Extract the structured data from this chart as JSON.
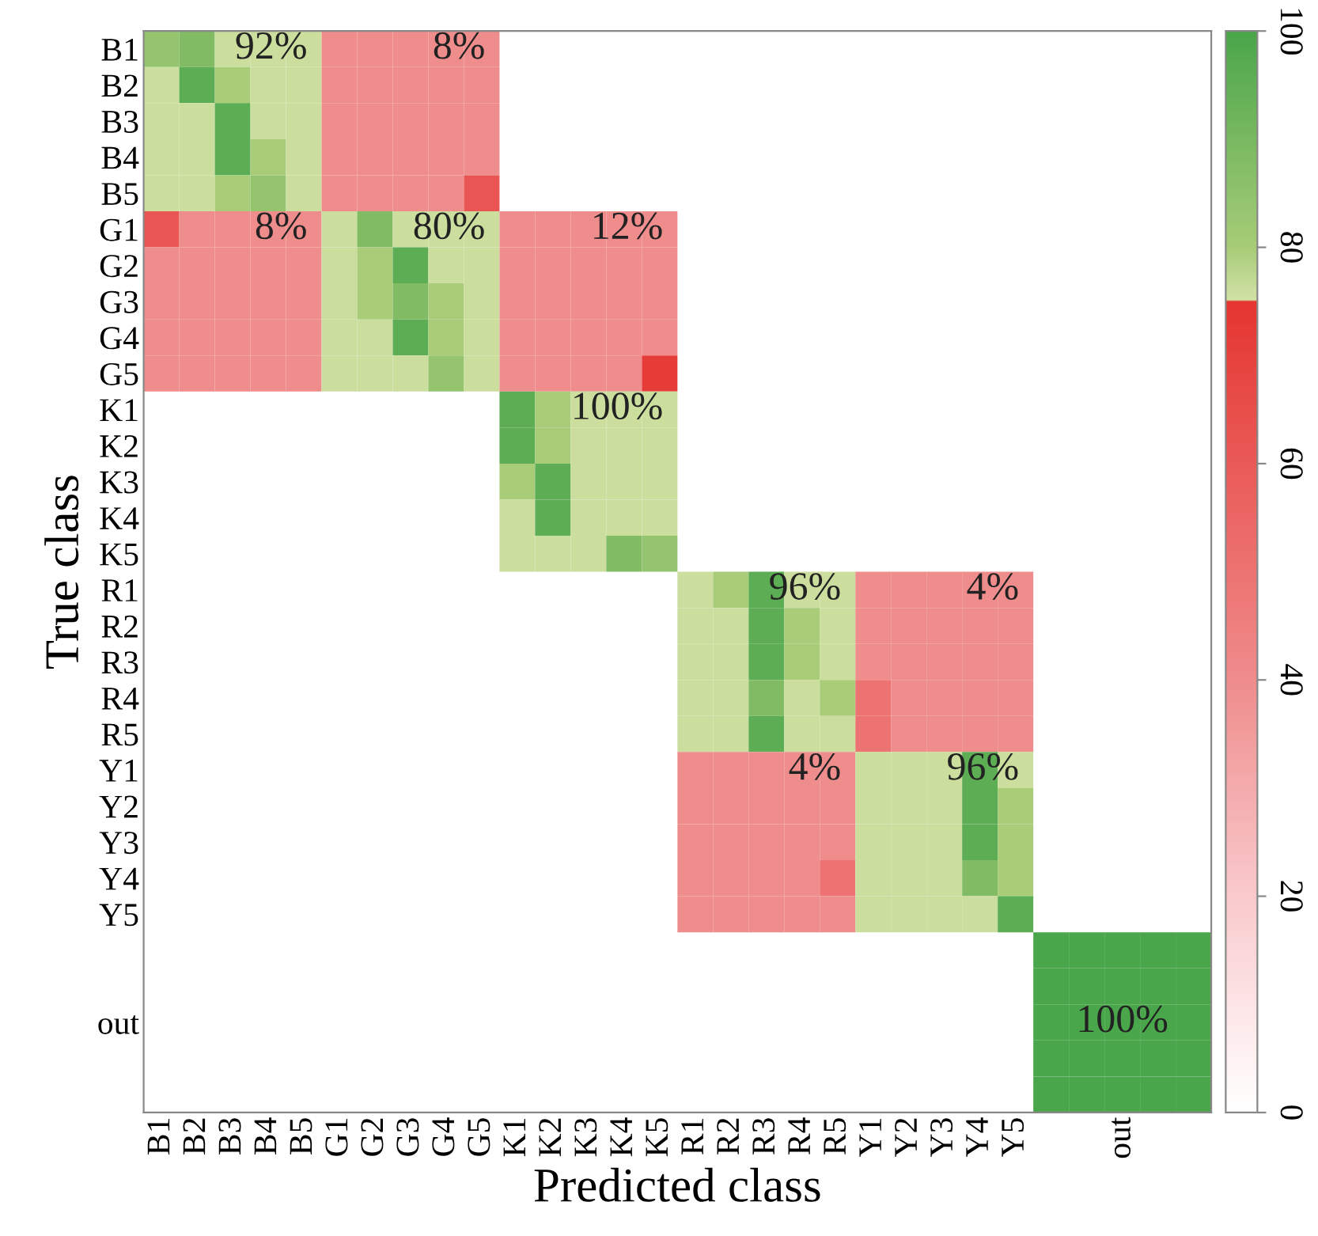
{
  "chart_data": {
    "type": "heatmap",
    "xlabel": "Predicted class",
    "ylabel": "True class",
    "categories": [
      "B1",
      "B2",
      "B3",
      "B4",
      "B5",
      "G1",
      "G2",
      "G3",
      "G4",
      "G5",
      "K1",
      "K2",
      "K3",
      "K4",
      "K5",
      "R1",
      "R2",
      "R3",
      "R4",
      "R5",
      "Y1",
      "Y2",
      "Y3",
      "Y4",
      "Y5",
      null,
      null,
      "out",
      null,
      null
    ],
    "y_categories": [
      "B1",
      "B2",
      "B3",
      "B4",
      "B5",
      "G1",
      "G2",
      "G3",
      "G4",
      "G5",
      "K1",
      "K2",
      "K3",
      "K4",
      "K5",
      "R1",
      "R2",
      "R3",
      "R4",
      "R5",
      "Y1",
      "Y2",
      "Y3",
      "Y4",
      "Y5",
      null,
      null,
      "out",
      null,
      null
    ],
    "cells": [
      [
        84,
        88,
        76,
        76,
        76,
        40,
        40,
        40,
        40,
        40,
        null,
        null,
        null,
        null,
        null,
        null,
        null,
        null,
        null,
        null,
        null,
        null,
        null,
        null,
        null,
        null,
        null,
        null,
        null,
        null
      ],
      [
        76,
        96,
        80,
        76,
        76,
        40,
        40,
        40,
        40,
        40,
        null,
        null,
        null,
        null,
        null,
        null,
        null,
        null,
        null,
        null,
        null,
        null,
        null,
        null,
        null,
        null,
        null,
        null,
        null,
        null
      ],
      [
        76,
        76,
        96,
        76,
        76,
        40,
        40,
        40,
        40,
        40,
        null,
        null,
        null,
        null,
        null,
        null,
        null,
        null,
        null,
        null,
        null,
        null,
        null,
        null,
        null,
        null,
        null,
        null,
        null,
        null
      ],
      [
        76,
        76,
        96,
        80,
        76,
        40,
        40,
        40,
        40,
        40,
        null,
        null,
        null,
        null,
        null,
        null,
        null,
        null,
        null,
        null,
        null,
        null,
        null,
        null,
        null,
        null,
        null,
        null,
        null,
        null
      ],
      [
        76,
        76,
        80,
        84,
        76,
        40,
        40,
        40,
        40,
        62,
        null,
        null,
        null,
        null,
        null,
        null,
        null,
        null,
        null,
        null,
        null,
        null,
        null,
        null,
        null,
        null,
        null,
        null,
        null,
        null
      ],
      [
        62,
        40,
        40,
        40,
        40,
        76,
        88,
        76,
        76,
        76,
        40,
        40,
        40,
        40,
        40,
        null,
        null,
        null,
        null,
        null,
        null,
        null,
        null,
        null,
        null,
        null,
        null,
        null,
        null,
        null
      ],
      [
        40,
        40,
        40,
        40,
        40,
        76,
        80,
        96,
        76,
        76,
        40,
        40,
        40,
        40,
        40,
        null,
        null,
        null,
        null,
        null,
        null,
        null,
        null,
        null,
        null,
        null,
        null,
        null,
        null,
        null
      ],
      [
        40,
        40,
        40,
        40,
        40,
        76,
        80,
        88,
        80,
        76,
        40,
        40,
        40,
        40,
        40,
        null,
        null,
        null,
        null,
        null,
        null,
        null,
        null,
        null,
        null,
        null,
        null,
        null,
        null,
        null
      ],
      [
        40,
        40,
        40,
        40,
        40,
        76,
        76,
        96,
        80,
        76,
        40,
        40,
        40,
        40,
        40,
        null,
        null,
        null,
        null,
        null,
        null,
        null,
        null,
        null,
        null,
        null,
        null,
        null,
        null,
        null
      ],
      [
        40,
        40,
        40,
        40,
        40,
        76,
        76,
        76,
        84,
        76,
        40,
        40,
        40,
        40,
        72,
        null,
        null,
        null,
        null,
        null,
        null,
        null,
        null,
        null,
        null,
        null,
        null,
        null,
        null,
        null
      ],
      [
        null,
        null,
        null,
        null,
        null,
        null,
        null,
        null,
        null,
        null,
        96,
        80,
        76,
        76,
        76,
        null,
        null,
        null,
        null,
        null,
        null,
        null,
        null,
        null,
        null,
        null,
        null,
        null,
        null,
        null
      ],
      [
        null,
        null,
        null,
        null,
        null,
        null,
        null,
        null,
        null,
        null,
        96,
        80,
        76,
        76,
        76,
        null,
        null,
        null,
        null,
        null,
        null,
        null,
        null,
        null,
        null,
        null,
        null,
        null,
        null,
        null
      ],
      [
        null,
        null,
        null,
        null,
        null,
        null,
        null,
        null,
        null,
        null,
        80,
        96,
        76,
        76,
        76,
        null,
        null,
        null,
        null,
        null,
        null,
        null,
        null,
        null,
        null,
        null,
        null,
        null,
        null,
        null
      ],
      [
        null,
        null,
        null,
        null,
        null,
        null,
        null,
        null,
        null,
        null,
        76,
        96,
        76,
        76,
        76,
        null,
        null,
        null,
        null,
        null,
        null,
        null,
        null,
        null,
        null,
        null,
        null,
        null,
        null,
        null
      ],
      [
        null,
        null,
        null,
        null,
        null,
        null,
        null,
        null,
        null,
        null,
        76,
        76,
        76,
        88,
        84,
        null,
        null,
        null,
        null,
        null,
        null,
        null,
        null,
        null,
        null,
        null,
        null,
        null,
        null,
        null
      ],
      [
        null,
        null,
        null,
        null,
        null,
        null,
        null,
        null,
        null,
        null,
        null,
        null,
        null,
        null,
        null,
        76,
        80,
        96,
        76,
        76,
        40,
        40,
        40,
        40,
        40,
        null,
        null,
        null,
        null,
        null
      ],
      [
        null,
        null,
        null,
        null,
        null,
        null,
        null,
        null,
        null,
        null,
        null,
        null,
        null,
        null,
        null,
        76,
        76,
        96,
        80,
        76,
        40,
        40,
        40,
        40,
        40,
        null,
        null,
        null,
        null,
        null
      ],
      [
        null,
        null,
        null,
        null,
        null,
        null,
        null,
        null,
        null,
        null,
        null,
        null,
        null,
        null,
        null,
        76,
        76,
        96,
        80,
        76,
        40,
        40,
        40,
        40,
        40,
        null,
        null,
        null,
        null,
        null
      ],
      [
        null,
        null,
        null,
        null,
        null,
        null,
        null,
        null,
        null,
        null,
        null,
        null,
        null,
        null,
        null,
        76,
        76,
        88,
        76,
        80,
        50,
        40,
        40,
        40,
        40,
        null,
        null,
        null,
        null,
        null
      ],
      [
        null,
        null,
        null,
        null,
        null,
        null,
        null,
        null,
        null,
        null,
        null,
        null,
        null,
        null,
        null,
        76,
        76,
        96,
        76,
        76,
        50,
        40,
        40,
        40,
        40,
        null,
        null,
        null,
        null,
        null
      ],
      [
        null,
        null,
        null,
        null,
        null,
        null,
        null,
        null,
        null,
        null,
        null,
        null,
        null,
        null,
        null,
        40,
        40,
        40,
        40,
        40,
        76,
        76,
        76,
        96,
        76,
        null,
        null,
        null,
        null,
        null
      ],
      [
        null,
        null,
        null,
        null,
        null,
        null,
        null,
        null,
        null,
        null,
        null,
        null,
        null,
        null,
        null,
        40,
        40,
        40,
        40,
        40,
        76,
        76,
        76,
        96,
        80,
        null,
        null,
        null,
        null,
        null
      ],
      [
        null,
        null,
        null,
        null,
        null,
        null,
        null,
        null,
        null,
        null,
        null,
        null,
        null,
        null,
        null,
        40,
        40,
        40,
        40,
        40,
        76,
        76,
        76,
        96,
        80,
        null,
        null,
        null,
        null,
        null
      ],
      [
        null,
        null,
        null,
        null,
        null,
        null,
        null,
        null,
        null,
        null,
        null,
        null,
        null,
        null,
        null,
        40,
        40,
        40,
        40,
        50,
        76,
        76,
        76,
        88,
        80,
        null,
        null,
        null,
        null,
        null
      ],
      [
        null,
        null,
        null,
        null,
        null,
        null,
        null,
        null,
        null,
        null,
        null,
        null,
        null,
        null,
        null,
        40,
        40,
        40,
        40,
        40,
        76,
        76,
        76,
        76,
        96,
        null,
        null,
        null,
        null,
        null
      ],
      [
        null,
        null,
        null,
        null,
        null,
        null,
        null,
        null,
        null,
        null,
        null,
        null,
        null,
        null,
        null,
        null,
        null,
        null,
        null,
        null,
        null,
        null,
        null,
        null,
        null,
        100,
        100,
        100,
        100,
        100
      ],
      [
        null,
        null,
        null,
        null,
        null,
        null,
        null,
        null,
        null,
        null,
        null,
        null,
        null,
        null,
        null,
        null,
        null,
        null,
        null,
        null,
        null,
        null,
        null,
        null,
        null,
        100,
        100,
        100,
        100,
        100
      ],
      [
        null,
        null,
        null,
        null,
        null,
        null,
        null,
        null,
        null,
        null,
        null,
        null,
        null,
        null,
        null,
        null,
        null,
        null,
        null,
        null,
        null,
        null,
        null,
        null,
        null,
        100,
        100,
        100,
        100,
        100
      ],
      [
        null,
        null,
        null,
        null,
        null,
        null,
        null,
        null,
        null,
        null,
        null,
        null,
        null,
        null,
        null,
        null,
        null,
        null,
        null,
        null,
        null,
        null,
        null,
        null,
        null,
        100,
        100,
        100,
        100,
        100
      ],
      [
        null,
        null,
        null,
        null,
        null,
        null,
        null,
        null,
        null,
        null,
        null,
        null,
        null,
        null,
        null,
        null,
        null,
        null,
        null,
        null,
        null,
        null,
        null,
        null,
        null,
        100,
        100,
        100,
        100,
        100
      ]
    ],
    "clim": [
      0,
      100
    ],
    "cticks": [
      0,
      20,
      40,
      60,
      80,
      100
    ],
    "annotations": [
      "92%",
      "8%",
      "8%",
      "80%",
      "12%",
      "100%",
      "96%",
      "4%",
      "4%",
      "96%",
      "100%"
    ]
  }
}
